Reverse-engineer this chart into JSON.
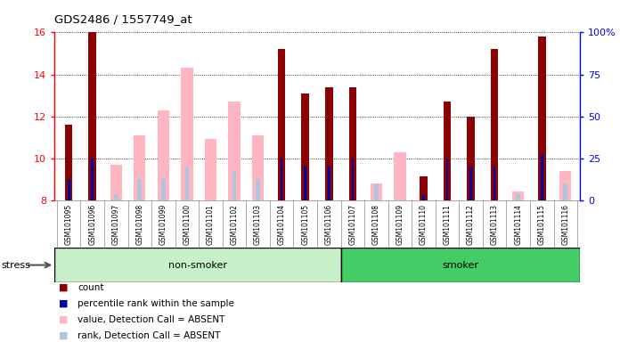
{
  "title": "GDS2486 / 1557749_at",
  "samples": [
    "GSM101095",
    "GSM101096",
    "GSM101097",
    "GSM101098",
    "GSM101099",
    "GSM101100",
    "GSM101101",
    "GSM101102",
    "GSM101103",
    "GSM101104",
    "GSM101105",
    "GSM101106",
    "GSM101107",
    "GSM101108",
    "GSM101109",
    "GSM101110",
    "GSM101111",
    "GSM101112",
    "GSM101113",
    "GSM101114",
    "GSM101115",
    "GSM101116"
  ],
  "count_values": [
    11.6,
    16.0,
    null,
    null,
    null,
    null,
    null,
    null,
    null,
    15.2,
    13.1,
    13.4,
    13.4,
    null,
    null,
    9.15,
    12.7,
    12.0,
    15.2,
    null,
    15.8,
    null
  ],
  "rank_values": [
    9.0,
    10.0,
    null,
    null,
    null,
    null,
    null,
    null,
    null,
    10.0,
    9.6,
    9.6,
    10.0,
    null,
    null,
    8.25,
    10.0,
    9.6,
    9.6,
    null,
    10.2,
    null
  ],
  "absent_value_values": [
    null,
    null,
    9.7,
    11.1,
    12.3,
    14.3,
    10.9,
    12.7,
    11.1,
    null,
    null,
    null,
    null,
    8.8,
    10.3,
    null,
    null,
    null,
    null,
    8.4,
    null,
    9.4
  ],
  "absent_rank_values": [
    null,
    null,
    8.3,
    9.0,
    9.0,
    9.6,
    null,
    9.4,
    9.0,
    null,
    null,
    null,
    8.3,
    8.8,
    null,
    8.4,
    8.8,
    null,
    null,
    8.3,
    8.8,
    8.8
  ],
  "ylim": [
    8,
    16
  ],
  "yticks_left": [
    8,
    10,
    12,
    14,
    16
  ],
  "yticks_right_vals": [
    0,
    25,
    50,
    75,
    100
  ],
  "yticks_right_labels": [
    "0",
    "25",
    "50",
    "75",
    "100%"
  ],
  "group_labels": [
    "non-smoker",
    "smoker"
  ],
  "group_ranges": [
    [
      0,
      11
    ],
    [
      12,
      21
    ]
  ],
  "group_color_light": "#c8f0c8",
  "group_color_dark": "#44cc66",
  "stress_label": "stress",
  "count_color": "#8B0000",
  "rank_color": "#0000AA",
  "absent_value_color": "#FFB6C1",
  "absent_rank_color": "#B0C4DE",
  "xtick_bg_color": "#C8C8C8",
  "legend_items": [
    {
      "label": "count",
      "color": "#8B0000"
    },
    {
      "label": "percentile rank within the sample",
      "color": "#0000AA"
    },
    {
      "label": "value, Detection Call = ABSENT",
      "color": "#FFB6C1"
    },
    {
      "label": "rank, Detection Call = ABSENT",
      "color": "#B0C4DE"
    }
  ]
}
